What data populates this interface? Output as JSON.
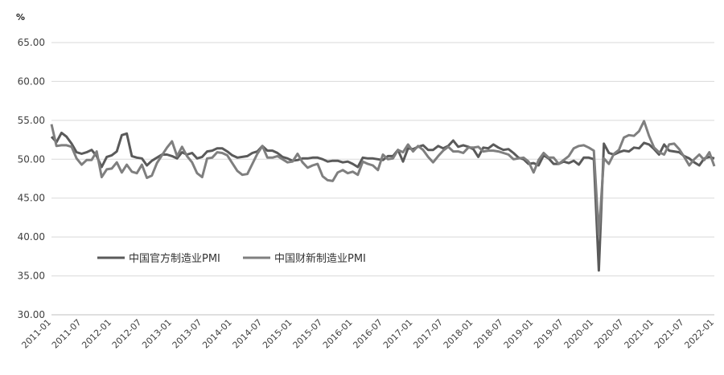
{
  "chart_data": {
    "type": "line",
    "title": "",
    "unit": "%",
    "xlabel": "",
    "ylabel": "",
    "ylim": [
      30,
      65
    ],
    "yticks": [
      "30.00",
      "35.00",
      "40.00",
      "45.00",
      "50.00",
      "55.00",
      "60.00",
      "65.00"
    ],
    "yticks_values": [
      30,
      35,
      40,
      45,
      50,
      55,
      60,
      65
    ],
    "grid": true,
    "legend_position": "lower-left",
    "x_start": "2011-01",
    "x_end": "2022-01",
    "xticks": [
      "2011-01",
      "2011-07",
      "2012-01",
      "2012-07",
      "2013-01",
      "2013-07",
      "2014-01",
      "2014-07",
      "2015-01",
      "2015-07",
      "2016-01",
      "2016-07",
      "2017-01",
      "2017-07",
      "2018-01",
      "2018-07",
      "2019-01",
      "2019-07",
      "2020-01",
      "2020-07",
      "2021-01",
      "2021-07",
      "2022-01"
    ],
    "series": [
      {
        "name": "中国官方制造业PMI",
        "color": "#5a5a5a",
        "values": [
          52.9,
          52.2,
          53.4,
          52.9,
          52.0,
          50.9,
          50.7,
          50.9,
          51.2,
          50.4,
          49.0,
          50.3,
          50.5,
          51.0,
          53.1,
          53.3,
          50.4,
          50.2,
          50.1,
          49.2,
          49.8,
          50.2,
          50.6,
          50.6,
          50.4,
          50.1,
          50.9,
          50.6,
          50.8,
          50.1,
          50.3,
          51.0,
          51.1,
          51.4,
          51.4,
          51.0,
          50.5,
          50.2,
          50.3,
          50.4,
          50.8,
          51.0,
          51.7,
          51.1,
          51.1,
          50.8,
          50.3,
          50.1,
          49.8,
          49.9,
          50.1,
          50.1,
          50.2,
          50.2,
          50.0,
          49.7,
          49.8,
          49.8,
          49.6,
          49.7,
          49.4,
          49.0,
          50.2,
          50.1,
          50.1,
          50.0,
          49.9,
          50.4,
          50.4,
          51.2,
          49.7,
          51.4,
          51.3,
          51.6,
          51.8,
          51.2,
          51.2,
          51.7,
          51.4,
          51.7,
          52.4,
          51.6,
          51.8,
          51.6,
          51.3,
          50.3,
          51.5,
          51.4,
          51.9,
          51.5,
          51.2,
          51.3,
          50.8,
          50.2,
          50.0,
          49.4,
          49.5,
          49.2,
          50.5,
          50.1,
          49.4,
          49.4,
          49.7,
          49.5,
          49.8,
          49.3,
          50.2,
          50.2,
          50.0,
          35.7,
          52.0,
          50.8,
          50.6,
          50.9,
          51.1,
          51.0,
          51.5,
          51.4,
          52.1,
          51.9,
          51.3,
          50.6,
          51.9,
          51.1,
          51.0,
          50.9,
          50.4,
          50.1,
          49.6,
          49.2,
          50.1,
          50.3,
          50.1
        ]
      },
      {
        "name": "中国财新制造业PMI",
        "color": "#7f7f7f",
        "values": [
          54.5,
          51.7,
          51.8,
          51.8,
          51.6,
          50.1,
          49.3,
          49.9,
          49.9,
          51.0,
          47.7,
          48.7,
          48.8,
          49.6,
          48.3,
          49.3,
          48.4,
          48.2,
          49.3,
          47.6,
          47.9,
          49.5,
          50.5,
          51.5,
          52.3,
          50.4,
          51.6,
          50.4,
          49.6,
          48.2,
          47.7,
          50.1,
          50.2,
          50.9,
          50.8,
          50.5,
          49.5,
          48.5,
          48.0,
          48.1,
          49.4,
          50.7,
          51.7,
          50.2,
          50.2,
          50.4,
          50.0,
          49.6,
          49.7,
          50.7,
          49.6,
          48.9,
          49.2,
          49.4,
          47.8,
          47.3,
          47.2,
          48.3,
          48.6,
          48.2,
          48.4,
          48.0,
          49.7,
          49.4,
          49.2,
          48.6,
          50.6,
          50.0,
          50.1,
          51.2,
          50.9,
          51.9,
          51.0,
          51.7,
          51.2,
          50.3,
          49.6,
          50.4,
          51.1,
          51.6,
          51.0,
          51.0,
          50.8,
          51.5,
          51.5,
          51.6,
          51.0,
          51.1,
          51.1,
          51.0,
          50.8,
          50.6,
          50.0,
          50.1,
          50.2,
          49.7,
          48.3,
          49.9,
          50.8,
          50.2,
          50.2,
          49.4,
          49.9,
          50.4,
          51.4,
          51.7,
          51.8,
          51.5,
          51.1,
          40.3,
          50.1,
          49.4,
          50.7,
          51.2,
          52.8,
          53.1,
          53.0,
          53.6,
          54.9,
          53.0,
          51.5,
          50.9,
          50.6,
          51.9,
          52.0,
          51.3,
          50.3,
          49.2,
          50.0,
          50.6,
          49.9,
          50.9,
          49.1
        ]
      }
    ]
  }
}
